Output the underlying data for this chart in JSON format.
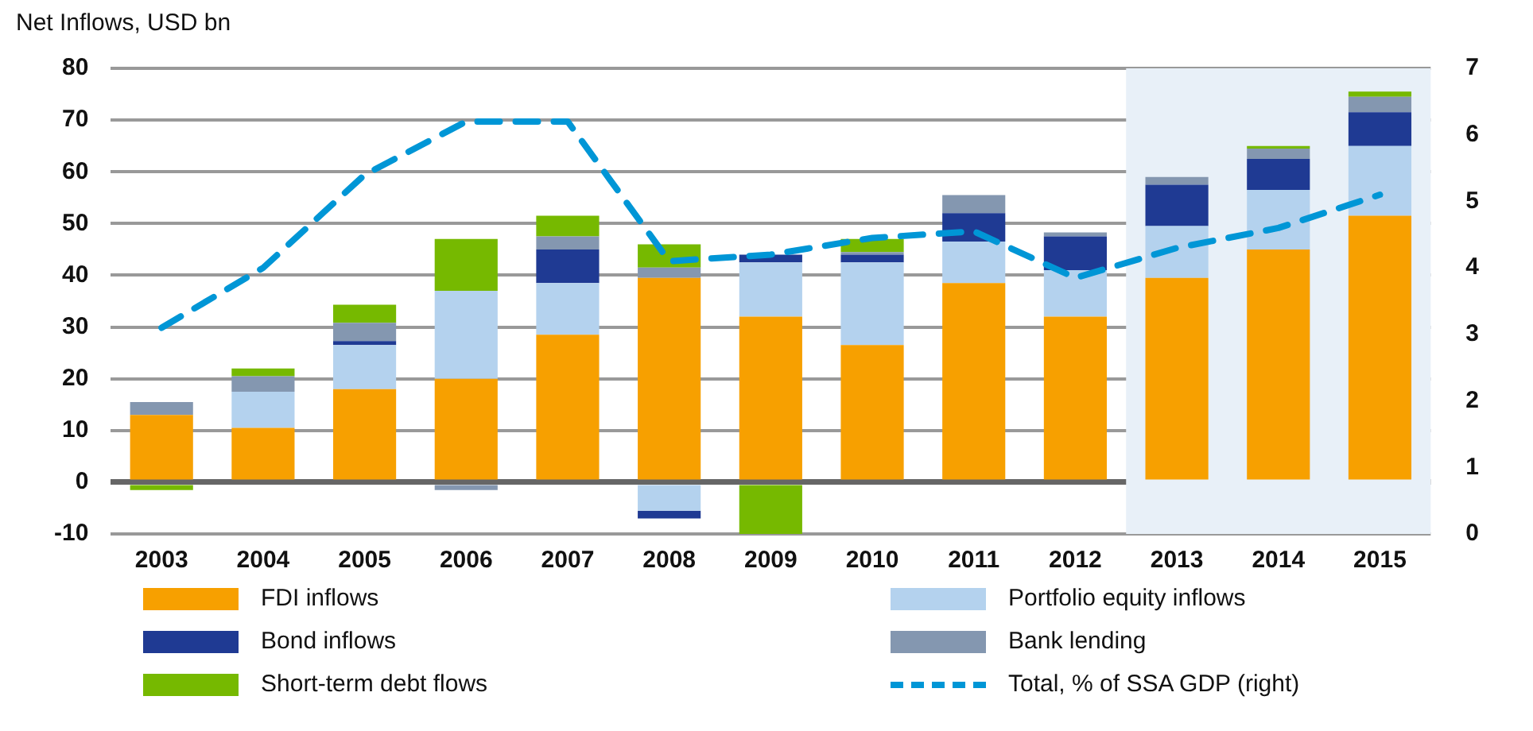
{
  "chart_data": {
    "type": "bar",
    "stacked": true,
    "ylabel": "Net Inflows, USD bn",
    "categories": [
      "2003",
      "2004",
      "2005",
      "2006",
      "2007",
      "2008",
      "2009",
      "2010",
      "2011",
      "2012",
      "2013",
      "2014",
      "2015"
    ],
    "series": [
      {
        "name": "FDI inflows",
        "color": "#f7a000",
        "values": [
          13,
          10.5,
          18,
          20,
          28.5,
          39.5,
          32,
          26.5,
          38.5,
          32,
          39.5,
          45,
          51.5
        ]
      },
      {
        "name": "Portfolio equity inflows",
        "color": "#b4d2ee",
        "values": [
          null,
          7,
          8.5,
          17,
          10,
          -5.5,
          10.5,
          16,
          8,
          9,
          10,
          11.5,
          13.5
        ]
      },
      {
        "name": "Bond inflows",
        "color": "#1f3a93",
        "values": [
          null,
          null,
          0.8,
          null,
          6.5,
          -1.5,
          1.5,
          1.5,
          5.5,
          6.5,
          8,
          6,
          6.5
        ]
      },
      {
        "name": "Bank lending",
        "color": "#8497b0",
        "values": [
          2.5,
          3,
          3.5,
          -1.5,
          2.5,
          2,
          null,
          0.5,
          3.5,
          0.8,
          1.5,
          2,
          3
        ]
      },
      {
        "name": "Short-term debt flows",
        "color": "#76b900",
        "values": [
          -1.5,
          1.5,
          3.5,
          10,
          4,
          4.5,
          -10,
          2.5,
          null,
          null,
          null,
          0.5,
          1
        ]
      },
      {
        "name": "Total, % of SSA GDP (right)",
        "type": "line",
        "axis": "y2",
        "line_style": "dashed",
        "marker": "none",
        "color": "#0096d6",
        "values": [
          3.1,
          4.0,
          5.4,
          6.2,
          6.2,
          4.1,
          4.2,
          4.45,
          4.55,
          3.85,
          4.3,
          4.6,
          5.1
        ]
      }
    ],
    "ylim": [
      -10,
      80
    ],
    "yticks": [
      -10,
      0,
      10,
      20,
      30,
      40,
      50,
      60,
      70,
      80
    ],
    "y2lim": [
      0,
      7
    ],
    "y2ticks": [
      0,
      1,
      2,
      3,
      4,
      5,
      6,
      7
    ],
    "bands": [
      {
        "axis": "x",
        "from": "2013",
        "to": "2015",
        "color": "#e8f0f8"
      }
    ],
    "grid": "y",
    "legend": "bottom"
  }
}
